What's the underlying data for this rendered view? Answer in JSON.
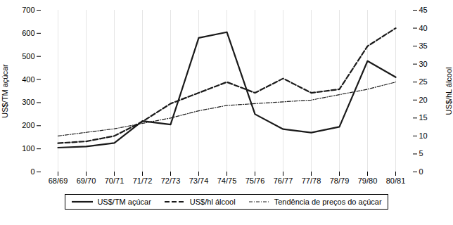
{
  "chart_data": {
    "type": "line",
    "categories": [
      "68/69",
      "69/70",
      "70/71",
      "71/72",
      "72/73",
      "73/74",
      "74/75",
      "75/76",
      "76/77",
      "77/78",
      "78/79",
      "79/80",
      "80/81"
    ],
    "series": [
      {
        "name": "US$/TM açúcar",
        "color": "#1a1a1a",
        "line_style": "solid",
        "values": [
          105,
          110,
          125,
          220,
          205,
          580,
          605,
          250,
          185,
          170,
          195,
          480,
          410
        ]
      },
      {
        "name": "US$/hl álcool",
        "color": "#1a1a1a",
        "line_style": "dashed",
        "axis": "y2",
        "values": [
          8,
          8.5,
          10,
          14,
          19,
          22,
          25,
          22,
          26,
          22,
          23,
          35,
          40
        ]
      },
      {
        "name": "Tendência de preços do açúcar",
        "color": "#1a1a1a",
        "line_style": "dashdot",
        "axis": "y2",
        "values": [
          10,
          11,
          12,
          13.5,
          15,
          17,
          18.5,
          19,
          19.5,
          20,
          21.5,
          23,
          25
        ]
      }
    ],
    "ylabel": "US$/TM açúcar",
    "y2label": "US$/hL álcool",
    "ylim": [
      0,
      700
    ],
    "yticks": [
      0,
      100,
      200,
      300,
      400,
      500,
      600,
      700
    ],
    "y2lim": [
      0,
      45
    ],
    "y2ticks": [
      0,
      5,
      10,
      15,
      20,
      25,
      30,
      35,
      40,
      45
    ],
    "grid": "x",
    "legend": "bottom"
  }
}
